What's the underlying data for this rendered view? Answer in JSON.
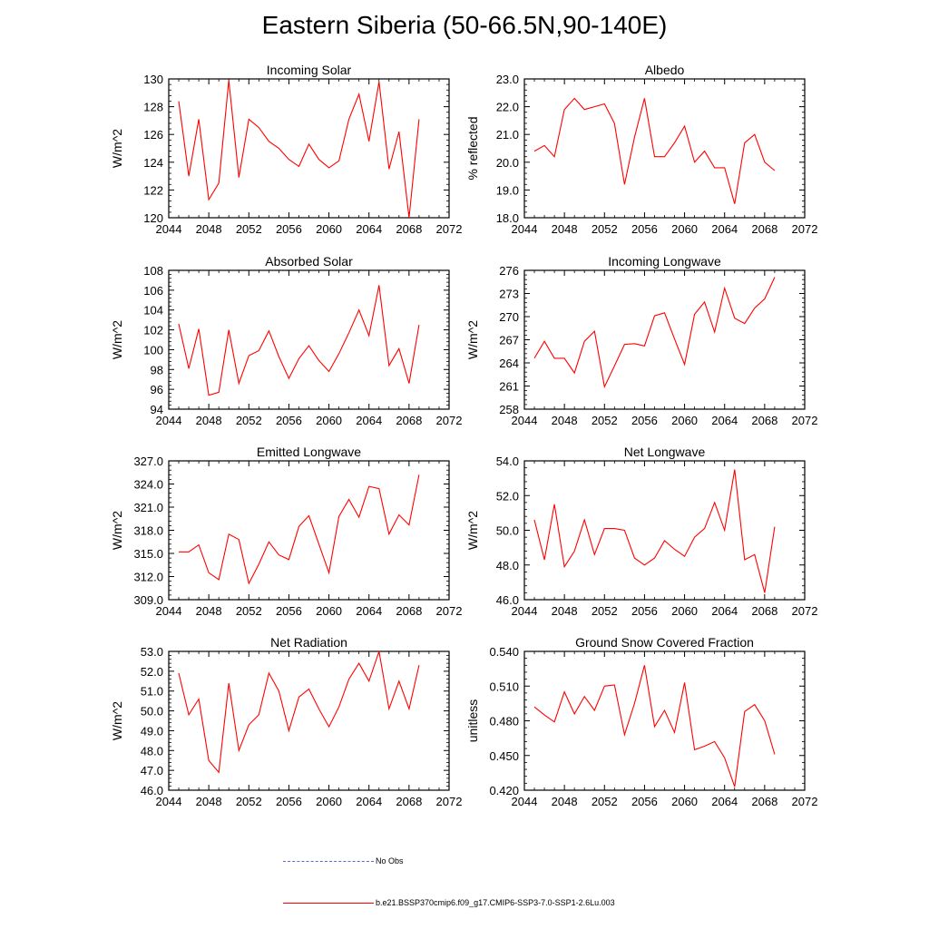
{
  "figure": {
    "title": "Eastern Siberia (50-66.5N,90-140E)"
  },
  "legend": [
    {
      "label": "No Obs",
      "color": "#5b6bd6",
      "style": "dashed"
    },
    {
      "label": "b.e21.BSSP370cmip6.f09_g17.CMIP6-SSP3-7.0-SSP1-2.6Lu.003",
      "color": "#ff0000",
      "style": "solid"
    }
  ],
  "chart_data": [
    {
      "type": "line",
      "title": "Incoming Solar",
      "xlabel": "",
      "ylabel": "W/m^2",
      "xlim": [
        2044,
        2072
      ],
      "ylim": [
        120,
        130
      ],
      "x_ticks": [
        2044,
        2048,
        2052,
        2056,
        2060,
        2064,
        2068,
        2072
      ],
      "x_tick_labels": [
        "2044",
        "2048",
        "2052",
        "2056",
        "2060",
        "2064",
        "2068",
        "2072"
      ],
      "y_ticks": [
        120,
        122,
        124,
        126,
        128,
        130
      ],
      "y_tick_labels": [
        "120",
        "122",
        "124",
        "126",
        "128",
        "130"
      ],
      "series": [
        {
          "color": "#ff0000",
          "x": [
            2045,
            2046,
            2047,
            2048,
            2049,
            2050,
            2051,
            2052,
            2053,
            2054,
            2055,
            2056,
            2057,
            2058,
            2059,
            2060,
            2061,
            2062,
            2063,
            2064,
            2065,
            2066,
            2067,
            2068,
            2069
          ],
          "y": [
            128.4,
            123.0,
            127.1,
            121.3,
            122.5,
            129.9,
            122.9,
            127.1,
            126.5,
            125.5,
            125.0,
            124.2,
            123.7,
            125.3,
            124.2,
            123.6,
            124.1,
            127.1,
            128.9,
            125.5,
            129.8,
            123.5,
            126.2,
            120.0,
            127.1
          ]
        }
      ]
    },
    {
      "type": "line",
      "title": "Albedo",
      "xlabel": "",
      "ylabel": "% reflected",
      "xlim": [
        2044,
        2072
      ],
      "ylim": [
        18,
        23
      ],
      "x_ticks": [
        2044,
        2048,
        2052,
        2056,
        2060,
        2064,
        2068,
        2072
      ],
      "x_tick_labels": [
        "2044",
        "2048",
        "2052",
        "2056",
        "2060",
        "2064",
        "2068",
        "2072"
      ],
      "y_ticks": [
        18,
        19,
        20,
        21,
        22,
        23
      ],
      "y_tick_labels": [
        "18.0",
        "19.0",
        "20.0",
        "21.0",
        "22.0",
        "23.0"
      ],
      "series": [
        {
          "color": "#ff0000",
          "x": [
            2045,
            2046,
            2047,
            2048,
            2049,
            2050,
            2051,
            2052,
            2053,
            2054,
            2055,
            2056,
            2057,
            2058,
            2059,
            2060,
            2061,
            2062,
            2063,
            2064,
            2065,
            2066,
            2067,
            2068,
            2069
          ],
          "y": [
            20.4,
            20.6,
            20.2,
            21.9,
            22.3,
            21.9,
            22.0,
            22.1,
            21.4,
            19.2,
            20.9,
            22.3,
            20.2,
            20.2,
            20.7,
            21.3,
            20.0,
            20.4,
            19.8,
            19.8,
            18.5,
            20.7,
            21.0,
            20.0,
            19.7
          ]
        }
      ]
    },
    {
      "type": "line",
      "title": "Absorbed Solar",
      "xlabel": "",
      "ylabel": "W/m^2",
      "xlim": [
        2044,
        2072
      ],
      "ylim": [
        94,
        108
      ],
      "x_ticks": [
        2044,
        2048,
        2052,
        2056,
        2060,
        2064,
        2068,
        2072
      ],
      "x_tick_labels": [
        "2044",
        "2048",
        "2052",
        "2056",
        "2060",
        "2064",
        "2068",
        "2072"
      ],
      "y_ticks": [
        94,
        96,
        98,
        100,
        102,
        104,
        106,
        108
      ],
      "y_tick_labels": [
        "94",
        "96",
        "98",
        "100",
        "102",
        "104",
        "106",
        "108"
      ],
      "series": [
        {
          "color": "#ff0000",
          "x": [
            2045,
            2046,
            2047,
            2048,
            2049,
            2050,
            2051,
            2052,
            2053,
            2054,
            2055,
            2056,
            2057,
            2058,
            2059,
            2060,
            2061,
            2062,
            2063,
            2064,
            2065,
            2066,
            2067,
            2068,
            2069
          ],
          "y": [
            102.6,
            98.1,
            102.1,
            95.4,
            95.7,
            102.0,
            96.6,
            99.4,
            99.9,
            101.9,
            99.3,
            97.1,
            99.1,
            100.4,
            98.9,
            97.8,
            99.6,
            101.7,
            104.0,
            101.4,
            106.5,
            98.4,
            100.1,
            96.6,
            102.5
          ]
        }
      ]
    },
    {
      "type": "line",
      "title": "Incoming Longwave",
      "xlabel": "",
      "ylabel": "W/m^2",
      "xlim": [
        2044,
        2072
      ],
      "ylim": [
        258,
        276
      ],
      "x_ticks": [
        2044,
        2048,
        2052,
        2056,
        2060,
        2064,
        2068,
        2072
      ],
      "x_tick_labels": [
        "2044",
        "2048",
        "2052",
        "2056",
        "2060",
        "2064",
        "2068",
        "2072"
      ],
      "y_ticks": [
        258,
        261,
        264,
        267,
        270,
        273,
        276
      ],
      "y_tick_labels": [
        "258",
        "261",
        "264",
        "267",
        "270",
        "273",
        "276"
      ],
      "series": [
        {
          "color": "#ff0000",
          "x": [
            2045,
            2046,
            2047,
            2048,
            2049,
            2050,
            2051,
            2052,
            2053,
            2054,
            2055,
            2056,
            2057,
            2058,
            2059,
            2060,
            2061,
            2062,
            2063,
            2064,
            2065,
            2066,
            2067,
            2068,
            2069
          ],
          "y": [
            264.6,
            266.8,
            264.6,
            264.6,
            262.7,
            266.8,
            268.1,
            260.9,
            263.6,
            266.4,
            266.5,
            266.2,
            270.1,
            270.5,
            267.1,
            263.8,
            270.3,
            271.9,
            268.0,
            273.7,
            269.8,
            269.1,
            271.1,
            272.3,
            275.1
          ]
        }
      ]
    },
    {
      "type": "line",
      "title": "Emitted Longwave",
      "xlabel": "",
      "ylabel": "W/m^2",
      "xlim": [
        2044,
        2072
      ],
      "ylim": [
        309,
        327
      ],
      "x_ticks": [
        2044,
        2048,
        2052,
        2056,
        2060,
        2064,
        2068,
        2072
      ],
      "x_tick_labels": [
        "2044",
        "2048",
        "2052",
        "2056",
        "2060",
        "2064",
        "2068",
        "2072"
      ],
      "y_ticks": [
        309,
        312,
        315,
        318,
        321,
        324,
        327
      ],
      "y_tick_labels": [
        "309.0",
        "312.0",
        "315.0",
        "318.0",
        "321.0",
        "324.0",
        "327.0"
      ],
      "series": [
        {
          "color": "#ff0000",
          "x": [
            2045,
            2046,
            2047,
            2048,
            2049,
            2050,
            2051,
            2052,
            2053,
            2054,
            2055,
            2056,
            2057,
            2058,
            2059,
            2060,
            2061,
            2062,
            2063,
            2064,
            2065,
            2066,
            2067,
            2068,
            2069
          ],
          "y": [
            315.2,
            315.2,
            316.1,
            312.5,
            311.6,
            317.5,
            316.8,
            311.1,
            313.6,
            316.5,
            314.8,
            314.2,
            318.5,
            319.9,
            316.2,
            312.5,
            319.8,
            322.0,
            319.7,
            323.7,
            323.4,
            317.5,
            320.0,
            318.7,
            325.2
          ]
        }
      ]
    },
    {
      "type": "line",
      "title": "Net Longwave",
      "xlabel": "",
      "ylabel": "W/m^2",
      "xlim": [
        2044,
        2072
      ],
      "ylim": [
        46,
        54
      ],
      "x_ticks": [
        2044,
        2048,
        2052,
        2056,
        2060,
        2064,
        2068,
        2072
      ],
      "x_tick_labels": [
        "2044",
        "2048",
        "2052",
        "2056",
        "2060",
        "2064",
        "2068",
        "2072"
      ],
      "y_ticks": [
        46,
        48,
        50,
        52,
        54
      ],
      "y_tick_labels": [
        "46.0",
        "48.0",
        "50.0",
        "52.0",
        "54.0"
      ],
      "series": [
        {
          "color": "#ff0000",
          "x": [
            2045,
            2046,
            2047,
            2048,
            2049,
            2050,
            2051,
            2052,
            2053,
            2054,
            2055,
            2056,
            2057,
            2058,
            2059,
            2060,
            2061,
            2062,
            2063,
            2064,
            2065,
            2066,
            2067,
            2068,
            2069
          ],
          "y": [
            50.6,
            48.3,
            51.5,
            47.9,
            48.8,
            50.6,
            48.6,
            50.1,
            50.1,
            50.0,
            48.4,
            48.0,
            48.4,
            49.4,
            48.9,
            48.5,
            49.6,
            50.1,
            51.6,
            50.0,
            53.5,
            48.3,
            48.6,
            46.4,
            50.2
          ]
        }
      ]
    },
    {
      "type": "line",
      "title": "Net Radiation",
      "xlabel": "",
      "ylabel": "W/m^2",
      "xlim": [
        2044,
        2072
      ],
      "ylim": [
        46,
        53
      ],
      "x_ticks": [
        2044,
        2048,
        2052,
        2056,
        2060,
        2064,
        2068,
        2072
      ],
      "x_tick_labels": [
        "2044",
        "2048",
        "2052",
        "2056",
        "2060",
        "2064",
        "2068",
        "2072"
      ],
      "y_ticks": [
        46,
        47,
        48,
        49,
        50,
        51,
        52,
        53
      ],
      "y_tick_labels": [
        "46.0",
        "47.0",
        "48.0",
        "49.0",
        "50.0",
        "51.0",
        "52.0",
        "53.0"
      ],
      "series": [
        {
          "color": "#ff0000",
          "x": [
            2045,
            2046,
            2047,
            2048,
            2049,
            2050,
            2051,
            2052,
            2053,
            2054,
            2055,
            2056,
            2057,
            2058,
            2059,
            2060,
            2061,
            2062,
            2063,
            2064,
            2065,
            2066,
            2067,
            2068,
            2069
          ],
          "y": [
            51.9,
            49.8,
            50.6,
            47.5,
            46.9,
            51.4,
            48.0,
            49.3,
            49.8,
            51.9,
            51.0,
            49.0,
            50.7,
            51.1,
            50.1,
            49.2,
            50.2,
            51.6,
            52.4,
            51.5,
            53.0,
            50.1,
            51.5,
            50.1,
            52.3
          ]
        }
      ]
    },
    {
      "type": "line",
      "title": "Ground Snow Covered Fraction",
      "xlabel": "",
      "ylabel": "unitless",
      "xlim": [
        2044,
        2072
      ],
      "ylim": [
        0.42,
        0.54
      ],
      "x_ticks": [
        2044,
        2048,
        2052,
        2056,
        2060,
        2064,
        2068,
        2072
      ],
      "x_tick_labels": [
        "2044",
        "2048",
        "2052",
        "2056",
        "2060",
        "2064",
        "2068",
        "2072"
      ],
      "y_ticks": [
        0.42,
        0.45,
        0.48,
        0.51,
        0.54
      ],
      "y_tick_labels": [
        "0.420",
        "0.450",
        "0.480",
        "0.510",
        "0.540"
      ],
      "series": [
        {
          "color": "#ff0000",
          "x": [
            2045,
            2046,
            2047,
            2048,
            2049,
            2050,
            2051,
            2052,
            2053,
            2054,
            2055,
            2056,
            2057,
            2058,
            2059,
            2060,
            2061,
            2062,
            2063,
            2064,
            2065,
            2066,
            2067,
            2068,
            2069
          ],
          "y": [
            0.492,
            0.485,
            0.479,
            0.505,
            0.486,
            0.501,
            0.489,
            0.51,
            0.511,
            0.468,
            0.495,
            0.528,
            0.475,
            0.489,
            0.47,
            0.513,
            0.455,
            0.458,
            0.462,
            0.448,
            0.423,
            0.488,
            0.494,
            0.48,
            0.451
          ]
        }
      ]
    }
  ]
}
